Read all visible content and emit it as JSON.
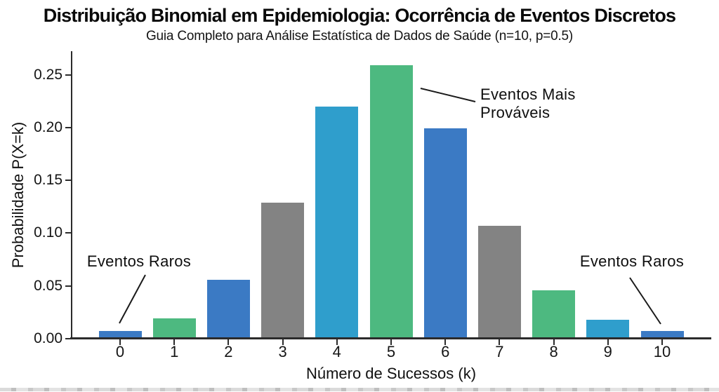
{
  "chart_data": {
    "type": "bar",
    "title": "Distribuição Binomial em Epidemiologia: Ocorrência de Eventos Discretos",
    "subtitle": "Guia Completo para Análise Estatística de Dados de Saúde (n=10, p=0.5)",
    "xlabel": "Número de Sucessos (k)",
    "ylabel": "Probabilidade P(X=k)",
    "categories": [
      "0",
      "1",
      "2",
      "3",
      "4",
      "5",
      "6",
      "7",
      "8",
      "9",
      "10"
    ],
    "values": [
      0.007,
      0.019,
      0.056,
      0.129,
      0.22,
      0.259,
      0.199,
      0.107,
      0.046,
      0.018,
      0.007
    ],
    "bar_colors": [
      "#3b7ac4",
      "#4db980",
      "#3b7ac4",
      "#838383",
      "#2f9ecc",
      "#4db980",
      "#3b7ac4",
      "#838383",
      "#4db980",
      "#2f9ecc",
      "#3b7ac4"
    ],
    "yticks": [
      {
        "value": 0.0,
        "label": "0.00"
      },
      {
        "value": 0.05,
        "label": "0.05"
      },
      {
        "value": 0.1,
        "label": "0.10"
      },
      {
        "value": 0.15,
        "label": "0.15"
      },
      {
        "value": 0.2,
        "label": "0.20"
      },
      {
        "value": 0.25,
        "label": "0.25"
      }
    ],
    "ylim": [
      0,
      0.268
    ],
    "grid": false,
    "params": {
      "n": 10,
      "p": 0.5
    },
    "annotations": [
      {
        "text": "Eventos Raros",
        "target_category": "0"
      },
      {
        "text": "Eventos Mais\nProváveis",
        "target_category": "5"
      },
      {
        "text": "Eventos Raros",
        "target_category": "10"
      }
    ],
    "colors": {
      "axis": "#2b2b2b",
      "text": "#111111",
      "background": "#ffffff"
    }
  }
}
